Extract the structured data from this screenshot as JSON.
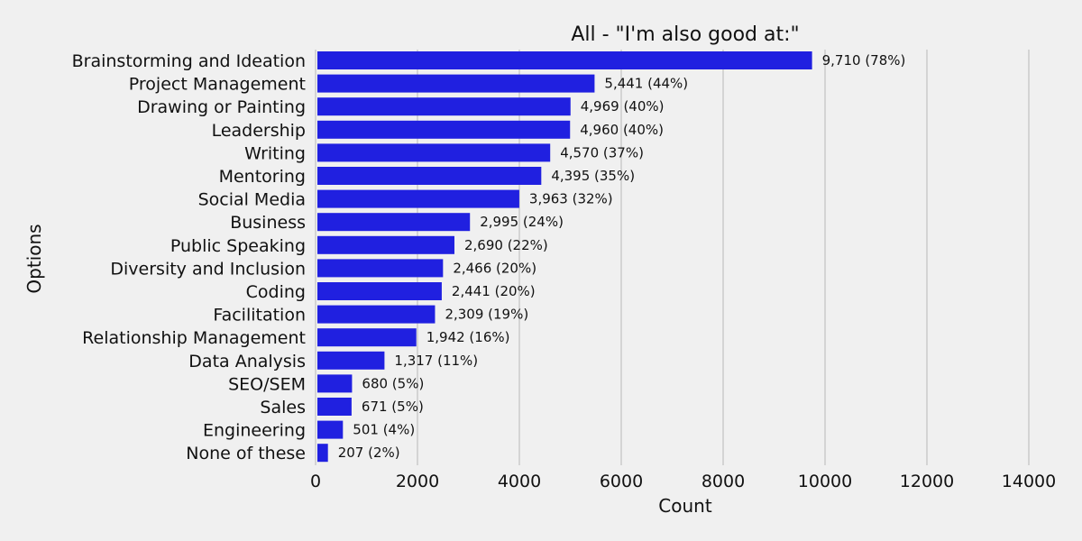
{
  "chart_data": {
    "type": "bar",
    "orientation": "horizontal",
    "title": "All - \"I'm also good at:\"",
    "xlabel": "Count",
    "ylabel": "Options",
    "xlim": [
      0,
      14500
    ],
    "xticks": [
      0,
      2000,
      4000,
      6000,
      8000,
      10000,
      12000,
      14000
    ],
    "grid": "vertical",
    "bar_color": "#2020e0",
    "categories": [
      "Brainstorming and Ideation",
      "Project Management",
      "Drawing or Painting",
      "Leadership",
      "Writing",
      "Mentoring",
      "Social Media",
      "Business",
      "Public Speaking",
      "Diversity and Inclusion",
      "Coding",
      "Facilitation",
      "Relationship Management",
      "Data Analysis",
      "SEO/SEM",
      "Sales",
      "Engineering",
      "None of these"
    ],
    "values": [
      9710,
      5441,
      4969,
      4960,
      4570,
      4395,
      3963,
      2995,
      2690,
      2466,
      2441,
      2309,
      1942,
      1317,
      680,
      671,
      501,
      207
    ],
    "data_labels": [
      "9,710 (78%)",
      "5,441 (44%)",
      "4,969 (40%)",
      "4,960 (40%)",
      "4,570 (37%)",
      "4,395 (35%)",
      "3,963 (32%)",
      "2,995 (24%)",
      "2,690 (22%)",
      "2,466 (20%)",
      "2,441 (20%)",
      "2,309 (19%)",
      "1,942 (16%)",
      "1,317 (11%)",
      "680 (5%)",
      "671 (5%)",
      "501 (4%)",
      "207 (2%)"
    ]
  }
}
